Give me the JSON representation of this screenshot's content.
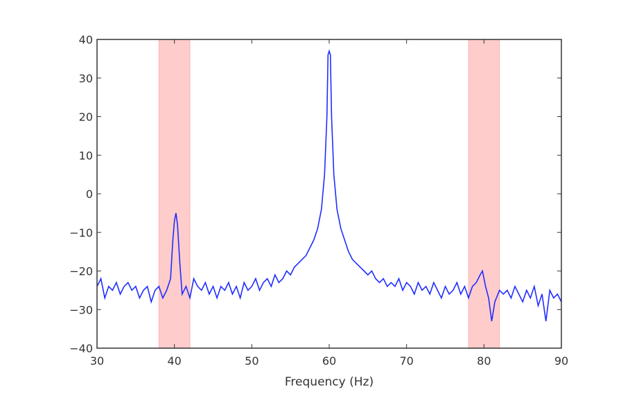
{
  "chart_data": {
    "type": "line",
    "title": "",
    "xlabel": "Frequency (Hz)",
    "ylabel": "",
    "xlim": [
      30,
      90
    ],
    "ylim": [
      -40,
      40
    ],
    "xticks": [
      30,
      40,
      50,
      60,
      70,
      80,
      90
    ],
    "yticks": [
      40,
      30,
      20,
      10,
      0,
      -10,
      -20,
      -30,
      -40
    ],
    "xtick_labels": [
      "30",
      "40",
      "50",
      "60",
      "70",
      "80",
      "90"
    ],
    "ytick_labels": [
      "40",
      "30",
      "20",
      "10",
      "0",
      "−10",
      "−20",
      "−30",
      "−40"
    ],
    "grid": false,
    "shaded_spans": [
      {
        "x": [
          38,
          42
        ]
      },
      {
        "x": [
          78,
          82
        ]
      }
    ],
    "colors": {
      "line": "#1f2cff",
      "span": "#ffcccc",
      "axis": "#333333"
    },
    "series": [
      {
        "x": [
          30,
          30.5,
          31,
          31.5,
          32,
          32.5,
          33,
          33.5,
          34,
          34.5,
          35,
          35.5,
          36,
          36.5,
          37,
          37.5,
          38,
          38.5,
          39,
          39.5,
          39.8,
          40,
          40.2,
          40.4,
          40.7,
          41,
          41.5,
          42,
          42.5,
          43,
          43.5,
          44,
          44.5,
          45,
          45.5,
          46,
          46.5,
          47,
          47.5,
          48,
          48.5,
          49,
          49.5,
          50,
          50.5,
          51,
          51.5,
          52,
          52.5,
          53,
          53.5,
          54,
          54.5,
          55,
          55.5,
          56,
          56.5,
          57,
          57.5,
          58,
          58.5,
          59,
          59.4,
          59.7,
          59.85,
          60,
          60.15,
          60.3,
          60.6,
          61,
          61.5,
          62,
          62.5,
          63,
          63.5,
          64,
          64.5,
          65,
          65.5,
          66,
          66.5,
          67,
          67.5,
          68,
          68.5,
          69,
          69.5,
          70,
          70.5,
          71,
          71.5,
          72,
          72.5,
          73,
          73.5,
          74,
          74.5,
          75,
          75.5,
          76,
          76.5,
          77,
          77.5,
          78,
          78.5,
          79,
          79.5,
          79.8,
          80.2,
          80.6,
          81,
          81.4,
          82,
          82.5,
          83,
          83.5,
          84,
          84.5,
          85,
          85.5,
          86,
          86.5,
          87,
          87.5,
          88,
          88.5,
          89,
          89.5,
          90
        ],
        "y": [
          -24,
          -22,
          -27,
          -24,
          -25,
          -23,
          -26,
          -24,
          -23,
          -25,
          -24,
          -27,
          -25,
          -24,
          -28,
          -25,
          -24,
          -27,
          -25,
          -22,
          -12,
          -7,
          -5,
          -8,
          -18,
          -26,
          -24,
          -27,
          -22,
          -24,
          -25,
          -23,
          -26,
          -24,
          -27,
          -24,
          -25,
          -23,
          -26,
          -24,
          -27,
          -23,
          -25,
          -24,
          -22,
          -25,
          -23,
          -22,
          -24,
          -21,
          -23,
          -22,
          -20,
          -21,
          -19,
          -18,
          -17,
          -16,
          -14,
          -12,
          -9,
          -4,
          5,
          20,
          36,
          37,
          36,
          20,
          5,
          -4,
          -9,
          -12,
          -15,
          -17,
          -18,
          -19,
          -20,
          -21,
          -20,
          -22,
          -23,
          -22,
          -24,
          -23,
          -24,
          -22,
          -25,
          -23,
          -24,
          -26,
          -23,
          -25,
          -24,
          -26,
          -23,
          -25,
          -27,
          -24,
          -26,
          -25,
          -23,
          -26,
          -24,
          -27,
          -24,
          -23,
          -21,
          -20,
          -24,
          -27,
          -33,
          -28,
          -25,
          -26,
          -25,
          -27,
          -24,
          -26,
          -28,
          -25,
          -27,
          -24,
          -29,
          -26,
          -33,
          -25,
          -27,
          -26,
          -28
        ]
      }
    ]
  }
}
